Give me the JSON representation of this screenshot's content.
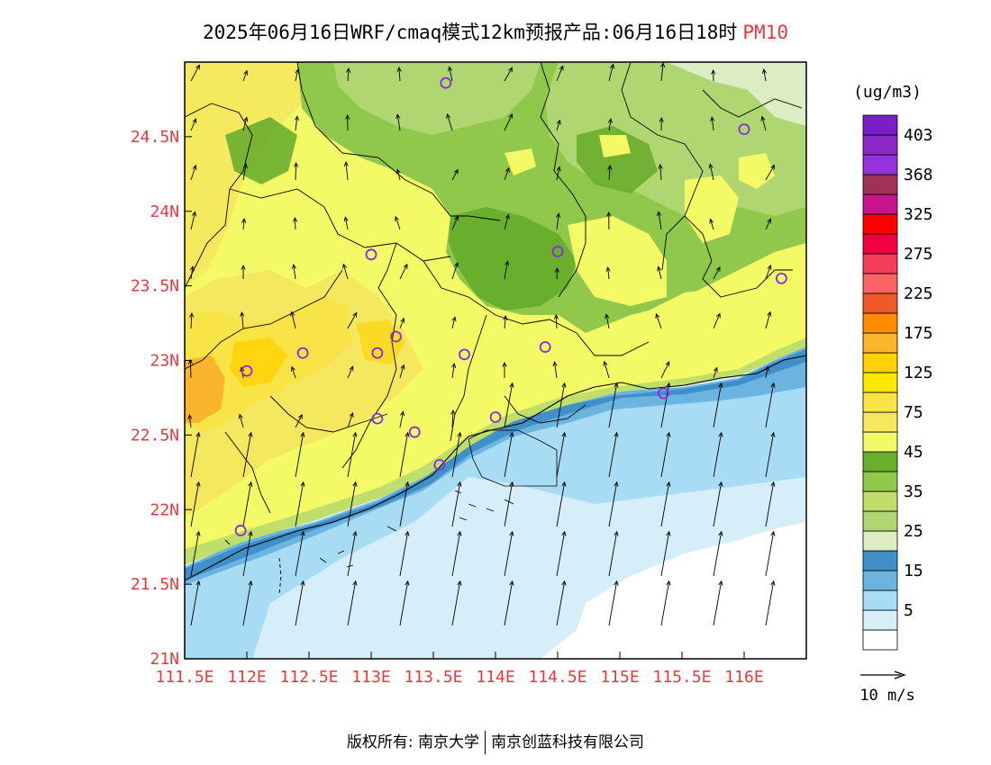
{
  "title": {
    "main": "2025年06月16日WRF/cmaq模式12km预报产品:06月16日18时",
    "variable": "PM10"
  },
  "map": {
    "lon_range": [
      111.5,
      116.5
    ],
    "lat_range": [
      21.0,
      25.0
    ],
    "x_ticks": [
      {
        "value": 111.5,
        "label": "111.5E"
      },
      {
        "value": 112.0,
        "label": "112E"
      },
      {
        "value": 112.5,
        "label": "112.5E"
      },
      {
        "value": 113.0,
        "label": "113E"
      },
      {
        "value": 113.5,
        "label": "113.5E"
      },
      {
        "value": 114.0,
        "label": "114E"
      },
      {
        "value": 114.5,
        "label": "114.5E"
      },
      {
        "value": 115.0,
        "label": "115E"
      },
      {
        "value": 115.5,
        "label": "115.5E"
      },
      {
        "value": 116.0,
        "label": "116E"
      }
    ],
    "y_ticks": [
      {
        "value": 21.0,
        "label": "21N"
      },
      {
        "value": 21.5,
        "label": "21.5N"
      },
      {
        "value": 22.0,
        "label": "22N"
      },
      {
        "value": 22.5,
        "label": "22.5N"
      },
      {
        "value": 23.0,
        "label": "23N"
      },
      {
        "value": 23.5,
        "label": "23.5N"
      },
      {
        "value": 24.0,
        "label": "24N"
      },
      {
        "value": 24.5,
        "label": "24.5N"
      }
    ],
    "tick_color": "#e8393b",
    "stations": [
      {
        "lon": 113.6,
        "lat": 24.86
      },
      {
        "lon": 116.0,
        "lat": 24.55
      },
      {
        "lon": 113.0,
        "lat": 23.71
      },
      {
        "lon": 114.5,
        "lat": 23.73
      },
      {
        "lon": 116.3,
        "lat": 23.55
      },
      {
        "lon": 113.2,
        "lat": 23.16
      },
      {
        "lon": 112.45,
        "lat": 23.05
      },
      {
        "lon": 113.05,
        "lat": 23.05
      },
      {
        "lon": 113.75,
        "lat": 23.04
      },
      {
        "lon": 114.4,
        "lat": 23.09
      },
      {
        "lon": 112.0,
        "lat": 22.93
      },
      {
        "lon": 115.35,
        "lat": 22.78
      },
      {
        "lon": 113.05,
        "lat": 22.61
      },
      {
        "lon": 113.35,
        "lat": 22.52
      },
      {
        "lon": 114.0,
        "lat": 22.62
      },
      {
        "lon": 113.55,
        "lat": 22.3
      },
      {
        "lon": 111.95,
        "lat": 21.86
      }
    ]
  },
  "legend": {
    "unit": "(ug/m3)",
    "levels": [
      {
        "color": "#ffffff",
        "label": ""
      },
      {
        "color": "#d6eefa",
        "label": "5"
      },
      {
        "color": "#a8dcf5",
        "label": ""
      },
      {
        "color": "#6cb4e0",
        "label": "15"
      },
      {
        "color": "#3f8fc8",
        "label": ""
      },
      {
        "color": "#dcedc4",
        "label": "25"
      },
      {
        "color": "#b0d672",
        "label": ""
      },
      {
        "color": "#c0de6a",
        "label": "35"
      },
      {
        "color": "#8fc84a",
        "label": ""
      },
      {
        "color": "#6aae2e",
        "label": "45"
      },
      {
        "color": "#f4fa66",
        "label": ""
      },
      {
        "color": "#f5e85e",
        "label": "75"
      },
      {
        "color": "#f9e448",
        "label": ""
      },
      {
        "color": "#ffe800",
        "label": "125"
      },
      {
        "color": "#ffd100",
        "label": ""
      },
      {
        "color": "#fbb52d",
        "label": "175"
      },
      {
        "color": "#ff8c00",
        "label": ""
      },
      {
        "color": "#f05a28",
        "label": "225"
      },
      {
        "color": "#fa6464",
        "label": ""
      },
      {
        "color": "#f53c5a",
        "label": "275"
      },
      {
        "color": "#f20046",
        "label": ""
      },
      {
        "color": "#ff0000",
        "label": "325"
      },
      {
        "color": "#c8148c",
        "label": ""
      },
      {
        "color": "#a0325a",
        "label": "368"
      },
      {
        "color": "#9632dc",
        "label": ""
      },
      {
        "color": "#8c28c8",
        "label": "403"
      },
      {
        "color": "#7a1ec8",
        "label": ""
      }
    ],
    "wind_ref": "10 m/s"
  },
  "copyright": {
    "owner_label": "版权所有: 南京大学",
    "company": "南京创蓝科技有限公司"
  }
}
